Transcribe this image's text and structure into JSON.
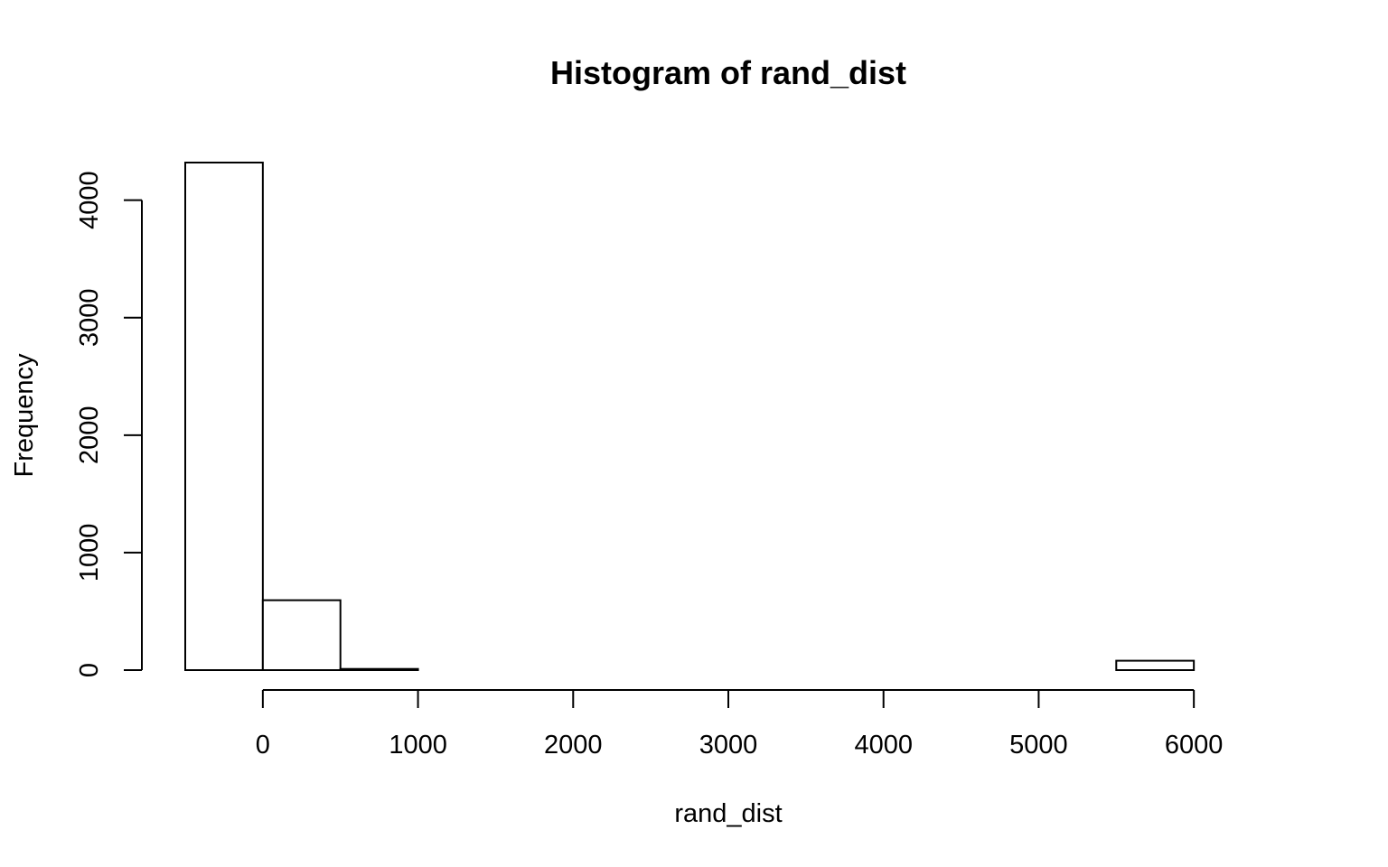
{
  "chart_data": {
    "type": "bar",
    "title": "Histogram of rand_dist",
    "xlabel": "rand_dist",
    "ylabel": "Frequency",
    "bins": [
      {
        "start": -500,
        "end": 0,
        "count": 4320
      },
      {
        "start": 0,
        "end": 500,
        "count": 595
      },
      {
        "start": 500,
        "end": 1000,
        "count": 10
      },
      {
        "start": 1000,
        "end": 1500,
        "count": 0
      },
      {
        "start": 1500,
        "end": 2000,
        "count": 0
      },
      {
        "start": 2000,
        "end": 2500,
        "count": 0
      },
      {
        "start": 2500,
        "end": 3000,
        "count": 0
      },
      {
        "start": 3000,
        "end": 3500,
        "count": 0
      },
      {
        "start": 3500,
        "end": 4000,
        "count": 0
      },
      {
        "start": 4000,
        "end": 4500,
        "count": 0
      },
      {
        "start": 4500,
        "end": 5000,
        "count": 0
      },
      {
        "start": 5000,
        "end": 5500,
        "count": 0
      },
      {
        "start": 5500,
        "end": 6000,
        "count": 80
      },
      {
        "start": 6000,
        "end": 6500,
        "count": 0
      }
    ],
    "xlim": [
      -500,
      6500
    ],
    "ylim": [
      0,
      4320
    ],
    "xticks": [
      0,
      1000,
      2000,
      3000,
      4000,
      5000,
      6000
    ],
    "xtick_labels": [
      "0",
      "1000",
      "2000",
      "3000",
      "4000",
      "5000",
      "6000"
    ],
    "yticks": [
      0,
      1000,
      2000,
      3000,
      4000
    ],
    "ytick_labels": [
      "0",
      "1000",
      "2000",
      "3000",
      "4000"
    ],
    "grid": false,
    "bar_fill": "#ffffff",
    "bar_stroke": "#000000"
  }
}
